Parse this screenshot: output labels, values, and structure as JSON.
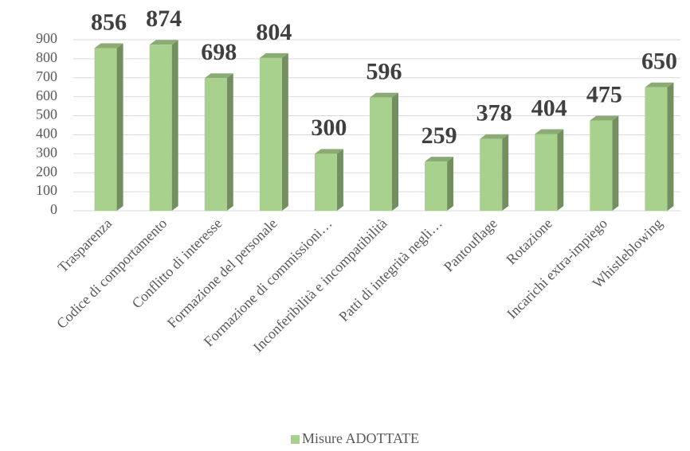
{
  "chart_data": {
    "type": "bar",
    "categories": [
      "Trasparenza",
      "Codice di comportamento",
      "Conflitto di interesse",
      "Formazione del personale",
      "Formazione di commissioni…",
      "Inconferibilità e incompatibilità",
      "Patti di integrità negli…",
      "Pantouflage",
      "Rotazione",
      "Incarichi extra-impiego",
      "Whistleblowing"
    ],
    "series": [
      {
        "name": "Misure ADOTTATE",
        "color": "#a9d18e",
        "values": [
          856,
          874,
          698,
          804,
          300,
          596,
          259,
          378,
          404,
          475,
          650
        ]
      }
    ],
    "ylim": [
      0,
      900
    ],
    "yticks": [
      0,
      100,
      200,
      300,
      400,
      500,
      600,
      700,
      800,
      900
    ],
    "grid": true,
    "legend": "bottom"
  }
}
